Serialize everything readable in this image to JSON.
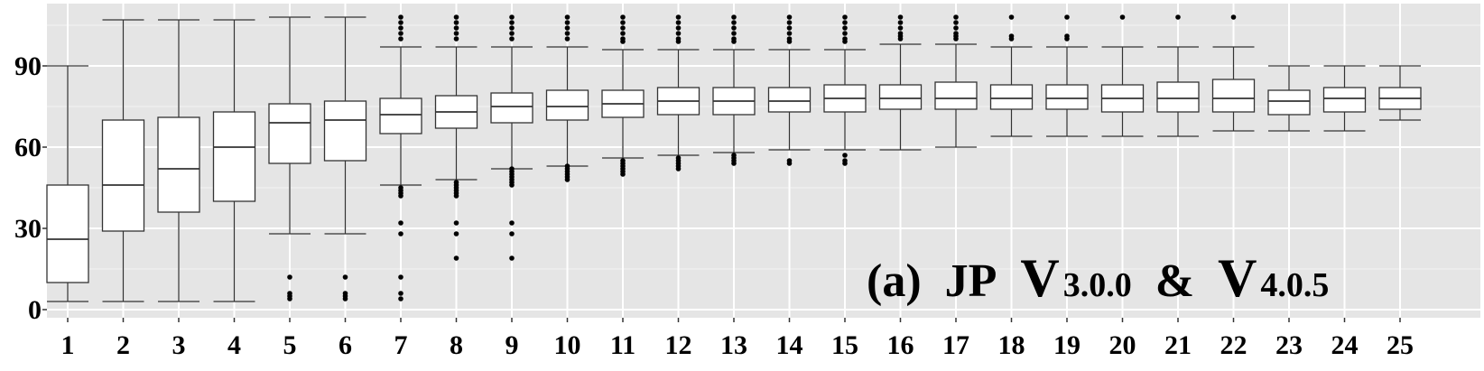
{
  "chart_data": {
    "type": "box",
    "title": "",
    "xlabel": "",
    "ylabel": "",
    "ylim": [
      0,
      112
    ],
    "yticks": [
      0,
      30,
      60,
      90
    ],
    "grid": true,
    "colors": {
      "panel_background": "#e5e5e5",
      "grid_major": "#ffffff",
      "box_fill": "#ffffff",
      "box_stroke": "#333333",
      "outlier": "#000000"
    },
    "annotation": {
      "prefix": "(a)",
      "name": "JP",
      "v1_letter": "V",
      "v1_version": "3.0.0",
      "amp": "&",
      "v2_letter": "V",
      "v2_version": "4.0.5"
    },
    "categories": [
      "1",
      "2",
      "3",
      "4",
      "5",
      "6",
      "7",
      "8",
      "9",
      "10",
      "11",
      "12",
      "13",
      "14",
      "15",
      "16",
      "17",
      "18",
      "19",
      "20",
      "21",
      "22",
      "23",
      "24",
      "25"
    ],
    "boxes": [
      {
        "min": 3,
        "q1": 10,
        "median": 26,
        "q3": 46,
        "max": 90,
        "outliers": []
      },
      {
        "min": 3,
        "q1": 29,
        "median": 46,
        "q3": 70,
        "max": 107,
        "outliers": []
      },
      {
        "min": 3,
        "q1": 36,
        "median": 52,
        "q3": 71,
        "max": 107,
        "outliers": []
      },
      {
        "min": 3,
        "q1": 40,
        "median": 60,
        "q3": 73,
        "max": 107,
        "outliers": []
      },
      {
        "min": 28,
        "q1": 54,
        "median": 69,
        "q3": 76,
        "max": 108,
        "outliers": [
          4,
          5,
          6,
          12
        ]
      },
      {
        "min": 28,
        "q1": 55,
        "median": 70,
        "q3": 77,
        "max": 108,
        "outliers": [
          4,
          5,
          6,
          12
        ]
      },
      {
        "min": 46,
        "q1": 65,
        "median": 72,
        "q3": 78,
        "max": 97,
        "outliers": [
          4,
          6,
          12,
          28,
          32,
          42,
          43,
          44,
          45,
          100,
          102,
          104,
          106,
          108
        ]
      },
      {
        "min": 48,
        "q1": 67,
        "median": 73,
        "q3": 79,
        "max": 97,
        "outliers": [
          19,
          28,
          32,
          42,
          43,
          44,
          45,
          46,
          47,
          100,
          102,
          104,
          106,
          108
        ]
      },
      {
        "min": 52,
        "q1": 69,
        "median": 75,
        "q3": 80,
        "max": 97,
        "outliers": [
          19,
          28,
          32,
          46,
          47,
          48,
          49,
          50,
          51,
          52,
          100,
          102,
          104,
          106,
          108
        ]
      },
      {
        "min": 53,
        "q1": 70,
        "median": 75,
        "q3": 81,
        "max": 97,
        "outliers": [
          48,
          49,
          50,
          51,
          52,
          53,
          100,
          102,
          104,
          106,
          108
        ]
      },
      {
        "min": 56,
        "q1": 71,
        "median": 76,
        "q3": 81,
        "max": 96,
        "outliers": [
          50,
          51,
          52,
          53,
          54,
          55,
          99,
          100,
          102,
          104,
          106,
          108
        ]
      },
      {
        "min": 57,
        "q1": 72,
        "median": 77,
        "q3": 82,
        "max": 96,
        "outliers": [
          52,
          53,
          54,
          55,
          56,
          99,
          100,
          102,
          104,
          106,
          108
        ]
      },
      {
        "min": 58,
        "q1": 72,
        "median": 77,
        "q3": 82,
        "max": 96,
        "outliers": [
          54,
          55,
          56,
          57,
          99,
          100,
          102,
          104,
          106,
          108
        ]
      },
      {
        "min": 59,
        "q1": 73,
        "median": 77,
        "q3": 82,
        "max": 96,
        "outliers": [
          54,
          55,
          99,
          100,
          102,
          104,
          106,
          108
        ]
      },
      {
        "min": 59,
        "q1": 73,
        "median": 78,
        "q3": 83,
        "max": 96,
        "outliers": [
          54,
          55,
          57,
          99,
          100,
          102,
          104,
          106,
          108
        ]
      },
      {
        "min": 59,
        "q1": 74,
        "median": 78,
        "q3": 83,
        "max": 98,
        "outliers": [
          100,
          101,
          102,
          104,
          106,
          108
        ]
      },
      {
        "min": 60,
        "q1": 74,
        "median": 78,
        "q3": 84,
        "max": 98,
        "outliers": [
          100,
          101,
          102,
          104,
          106,
          108
        ]
      },
      {
        "min": 64,
        "q1": 74,
        "median": 78,
        "q3": 83,
        "max": 97,
        "outliers": [
          100,
          101,
          108
        ]
      },
      {
        "min": 64,
        "q1": 74,
        "median": 78,
        "q3": 83,
        "max": 97,
        "outliers": [
          100,
          101,
          108
        ]
      },
      {
        "min": 64,
        "q1": 73,
        "median": 78,
        "q3": 83,
        "max": 97,
        "outliers": [
          108
        ]
      },
      {
        "min": 64,
        "q1": 73,
        "median": 78,
        "q3": 84,
        "max": 97,
        "outliers": [
          108
        ]
      },
      {
        "min": 66,
        "q1": 73,
        "median": 78,
        "q3": 85,
        "max": 97,
        "outliers": [
          108
        ]
      },
      {
        "min": 66,
        "q1": 72,
        "median": 77,
        "q3": 81,
        "max": 90,
        "outliers": []
      },
      {
        "min": 66,
        "q1": 73,
        "median": 78,
        "q3": 82,
        "max": 90,
        "outliers": []
      },
      {
        "min": 70,
        "q1": 74,
        "median": 78,
        "q3": 82,
        "max": 90,
        "outliers": []
      }
    ]
  }
}
